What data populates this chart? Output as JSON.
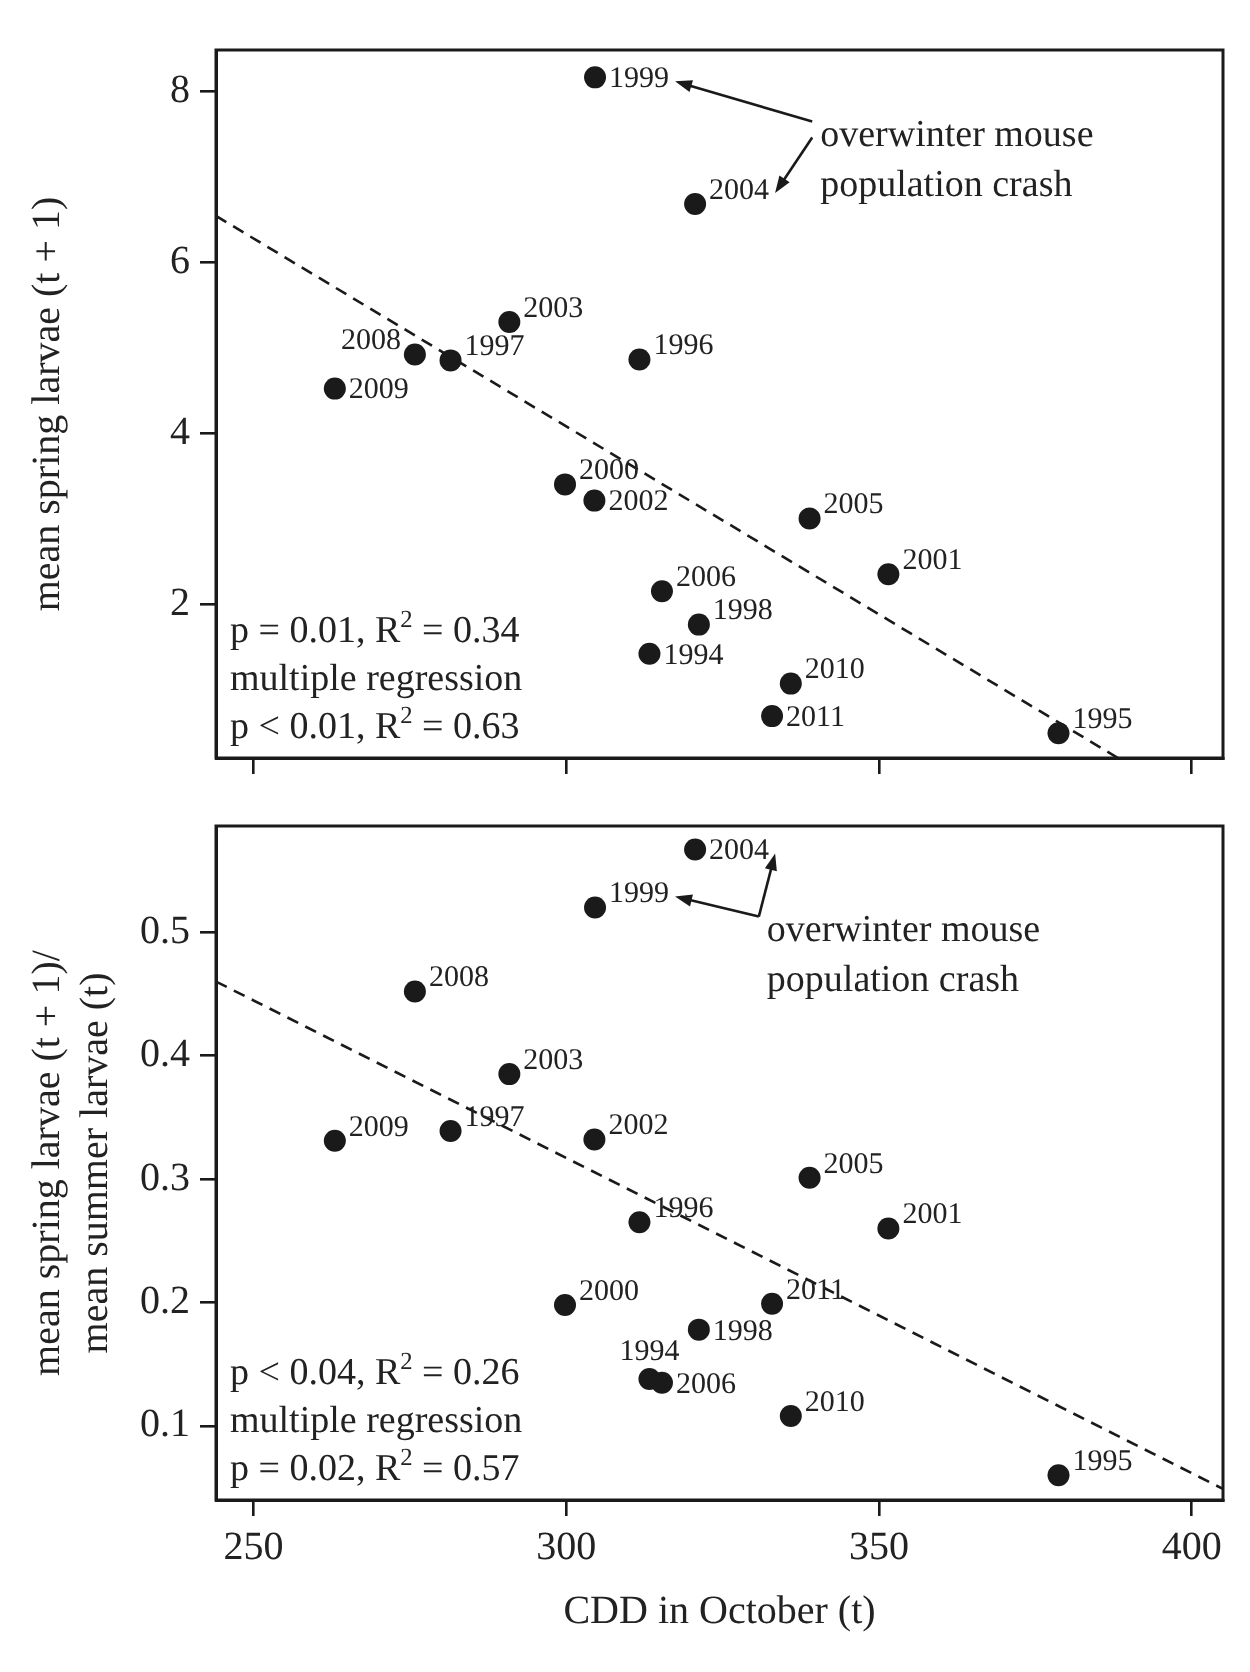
{
  "chart_data": [
    {
      "type": "scatter",
      "ylabel": "mean spring larvae (t + 1)",
      "xlim": [
        244,
        405
      ],
      "xticks": [
        250,
        300,
        350,
        400
      ],
      "ylim": [
        0.2,
        8.48
      ],
      "yticks": [
        2,
        4,
        6,
        8
      ],
      "tick_labels": "y",
      "grid": false,
      "legend": false,
      "marker": "circle",
      "annotations": [
        "p = 0.01, R$^{2}$ = 0.34",
        "multiple regression",
        "p < 0.01, R$^{2}$ = 0.63",
        "overwinter mouse population crash",
        {
          "text": "1999",
          "x": 304.6,
          "y": 8.16
        },
        {
          "text": "2004",
          "x": 320.6,
          "y": 6.68
        },
        {
          "text": "2003",
          "x": 290.9,
          "y": 5.3
        },
        {
          "text": "2008",
          "x": 275.8,
          "y": 4.92
        },
        {
          "text": "1997",
          "x": 281.5,
          "y": 4.85
        },
        {
          "text": "2009",
          "x": 263.0,
          "y": 4.52
        },
        {
          "text": "1996",
          "x": 311.7,
          "y": 4.86
        },
        {
          "text": "2000",
          "x": 299.8,
          "y": 3.4
        },
        {
          "text": "2002",
          "x": 304.5,
          "y": 3.21
        },
        {
          "text": "2005",
          "x": 338.9,
          "y": 3.0
        },
        {
          "text": "2001",
          "x": 351.5,
          "y": 2.35
        },
        {
          "text": "2006",
          "x": 315.3,
          "y": 2.15
        },
        {
          "text": "1998",
          "x": 321.2,
          "y": 1.76
        },
        {
          "text": "1994",
          "x": 313.3,
          "y": 1.42
        },
        {
          "text": "2010",
          "x": 335.9,
          "y": 1.07
        },
        {
          "text": "2011",
          "x": 332.9,
          "y": 0.69
        },
        {
          "text": "1995",
          "x": 378.7,
          "y": 0.49
        }
      ],
      "series": [
        {
          "color": "#1a1a1a",
          "x": [
            304.6,
            320.6,
            290.9,
            275.8,
            281.5,
            263.0,
            311.7,
            299.8,
            304.5,
            338.9,
            351.5,
            315.3,
            321.2,
            313.3,
            335.9,
            332.9,
            378.7
          ],
          "values": [
            8.16,
            6.68,
            5.3,
            4.92,
            4.85,
            4.52,
            4.86,
            3.4,
            3.21,
            3.0,
            2.35,
            2.15,
            1.76,
            1.42,
            1.07,
            0.69,
            0.49
          ]
        },
        {
          "type": "line",
          "color": "#1a1a1a",
          "line_style": "dashed",
          "marker": "none",
          "x": [
            244,
            388.2
          ],
          "values": [
            6.54,
            0.2
          ]
        }
      ]
    },
    {
      "type": "scatter",
      "xlabel": "CDD in October (t)",
      "ylabel": "mean spring larvae (t + 1)/\nmean summer larvae (t)",
      "xlim": [
        244,
        405
      ],
      "xticks": [
        250,
        300,
        350,
        400
      ],
      "ylim": [
        0.04,
        0.586
      ],
      "yticks": [
        0.1,
        0.2,
        0.3,
        0.4,
        0.5
      ],
      "grid": false,
      "legend": false,
      "marker": "circle",
      "annotations": [
        "p < 0.04, R$^{2}$ = 0.26",
        "multiple regression",
        "p = 0.02, R$^{2}$ = 0.57",
        "overwinter mouse population crash",
        {
          "text": "2004",
          "x": 320.6,
          "y": 0.567
        },
        {
          "text": "1999",
          "x": 304.6,
          "y": 0.52
        },
        {
          "text": "2008",
          "x": 275.8,
          "y": 0.452
        },
        {
          "text": "2003",
          "x": 290.9,
          "y": 0.385
        },
        {
          "text": "2009",
          "x": 263.0,
          "y": 0.331
        },
        {
          "text": "1997",
          "x": 281.5,
          "y": 0.339
        },
        {
          "text": "2002",
          "x": 304.5,
          "y": 0.332
        },
        {
          "text": "2005",
          "x": 338.9,
          "y": 0.301
        },
        {
          "text": "1996",
          "x": 311.7,
          "y": 0.265
        },
        {
          "text": "2001",
          "x": 351.5,
          "y": 0.26
        },
        {
          "text": "2000",
          "x": 299.8,
          "y": 0.198
        },
        {
          "text": "2011",
          "x": 332.9,
          "y": 0.199
        },
        {
          "text": "1998",
          "x": 321.2,
          "y": 0.178
        },
        {
          "text": "1994",
          "x": 313.3,
          "y": 0.138
        },
        {
          "text": "2006",
          "x": 315.3,
          "y": 0.135
        },
        {
          "text": "2010",
          "x": 335.9,
          "y": 0.108
        },
        {
          "text": "1995",
          "x": 378.7,
          "y": 0.06
        }
      ],
      "series": [
        {
          "color": "#1a1a1a",
          "x": [
            320.6,
            304.6,
            275.8,
            290.9,
            263.0,
            281.5,
            304.5,
            338.9,
            311.7,
            351.5,
            299.8,
            332.9,
            321.2,
            313.3,
            315.3,
            335.9,
            378.7
          ],
          "values": [
            0.567,
            0.52,
            0.452,
            0.385,
            0.331,
            0.339,
            0.332,
            0.301,
            0.265,
            0.26,
            0.198,
            0.199,
            0.178,
            0.138,
            0.135,
            0.108,
            0.06
          ]
        },
        {
          "type": "line",
          "color": "#1a1a1a",
          "line_style": "dashed",
          "marker": "none",
          "x": [
            244,
            405
          ],
          "values": [
            0.46,
            0.049
          ]
        }
      ]
    }
  ]
}
